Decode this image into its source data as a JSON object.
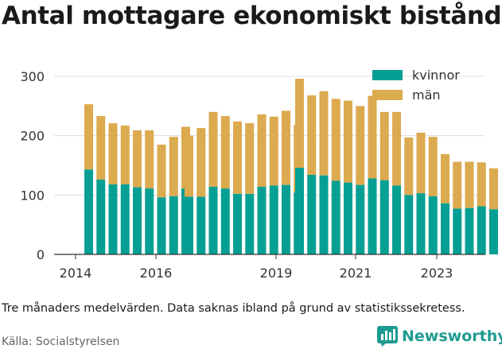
{
  "title": "Antal mottagare ekonomiskt bistånd",
  "note": "Tre månaders medelvärden. Data saknas ibland på grund av statistikssekretess.",
  "source": "Källa: Socialstyrelsen",
  "brand": {
    "name": "Newsworthy",
    "color": "#1e9b91",
    "icon": "bar-chart-logo-icon"
  },
  "colors": {
    "kvinnor": "#069f93",
    "man": "#dcaa4f",
    "grid": "#dddddd",
    "axis": "#333333"
  },
  "chart_data": {
    "type": "bar",
    "stacked": true,
    "ylim": [
      0,
      300
    ],
    "yticks": [
      0,
      100,
      200,
      300
    ],
    "xtick_labels": [
      "2014",
      "2016",
      "2019",
      "2021",
      "2023"
    ],
    "grid": true,
    "legend_position": "top-right",
    "series": [
      {
        "name": "kvinnor",
        "color": "#069f93"
      },
      {
        "name": "män",
        "color": "#dcaa4f"
      }
    ],
    "groups": [
      {
        "kvinnor": [
          143,
          126,
          118,
          118,
          113,
          111,
          96,
          98,
          111
        ],
        "total": [
          253,
          233,
          221,
          217,
          209,
          209,
          185,
          198,
          215
        ]
      },
      {
        "kvinnor": [
          97,
          97,
          114,
          111,
          102,
          102,
          114,
          116,
          117,
          104
        ],
        "total": [
          200,
          213,
          240,
          233,
          224,
          221,
          236,
          232,
          242,
          218
        ]
      },
      {
        "kvinnor": [
          146,
          134,
          133,
          124,
          121,
          117,
          128,
          125,
          116,
          100,
          103,
          98,
          86,
          77,
          78,
          81,
          76
        ],
        "total": [
          296,
          268,
          275,
          262,
          259,
          250,
          267,
          240,
          240,
          197,
          205,
          198,
          169,
          156,
          156,
          155,
          145
        ]
      }
    ]
  }
}
